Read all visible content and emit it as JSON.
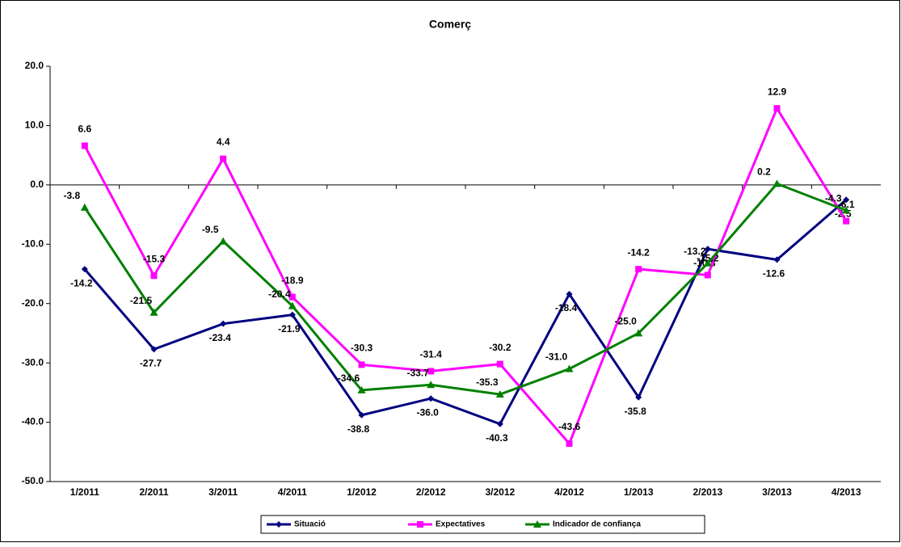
{
  "chart_data": {
    "type": "line",
    "title": "Comerç",
    "categories": [
      "1/2011",
      "2/2011",
      "3/2011",
      "4/2011",
      "1/2012",
      "2/2012",
      "3/2012",
      "4/2012",
      "1/2013",
      "2/2013",
      "3/2013",
      "4/2013"
    ],
    "series": [
      {
        "name": "Situació",
        "color": "#000080",
        "marker": "diamond",
        "values": [
          -14.2,
          -27.7,
          -23.4,
          -21.9,
          -38.8,
          -36.0,
          -40.3,
          -18.4,
          -35.8,
          -10.8,
          -12.6,
          -2.5
        ],
        "value_labels": [
          "-14.2",
          "-27.7",
          "-23.4",
          "-21.9",
          "-38.8",
          "-36.0",
          "-40.3",
          "-18.4",
          "-35.8",
          "-10.8",
          "-12.6",
          "-2.5"
        ]
      },
      {
        "name": "Expectatives",
        "color": "#ff00ff",
        "marker": "square",
        "values": [
          6.6,
          -15.3,
          4.4,
          -18.9,
          -30.3,
          -31.4,
          -30.2,
          -43.6,
          -14.2,
          -15.2,
          12.9,
          -6.1
        ],
        "value_labels": [
          "6.6",
          "-15.3",
          "4.4",
          "-18.9",
          "-30.3",
          "-31.4",
          "-30.2",
          "-43.6",
          "-14.2",
          "-15.2",
          "12.9",
          "-6.1"
        ]
      },
      {
        "name": "Indicador de confiança",
        "color": "#008000",
        "marker": "triangle",
        "values": [
          -3.8,
          -21.5,
          -9.5,
          -20.4,
          -34.6,
          -33.7,
          -35.3,
          -31.0,
          -25.0,
          -13.2,
          0.2,
          -4.3
        ],
        "value_labels": [
          "-3.8",
          "-21.5",
          "-9.5",
          "-20.4",
          "-34.6",
          "-33.7",
          "-35.3",
          "-31.0",
          "-25.0",
          "-13.2",
          "0.2",
          "-4.3"
        ]
      }
    ],
    "ylim": [
      -50,
      20
    ],
    "yticks": [
      {
        "value": -50,
        "label": "-50.0"
      },
      {
        "value": -40,
        "label": "-40.0"
      },
      {
        "value": -30,
        "label": "-30.0"
      },
      {
        "value": -20,
        "label": "-20.0"
      },
      {
        "value": -10,
        "label": "-10.0"
      },
      {
        "value": 0,
        "label": "0.0"
      },
      {
        "value": 10,
        "label": "10.0"
      },
      {
        "value": 20,
        "label": "20.0"
      }
    ],
    "grid": false,
    "legend": "bottom"
  }
}
